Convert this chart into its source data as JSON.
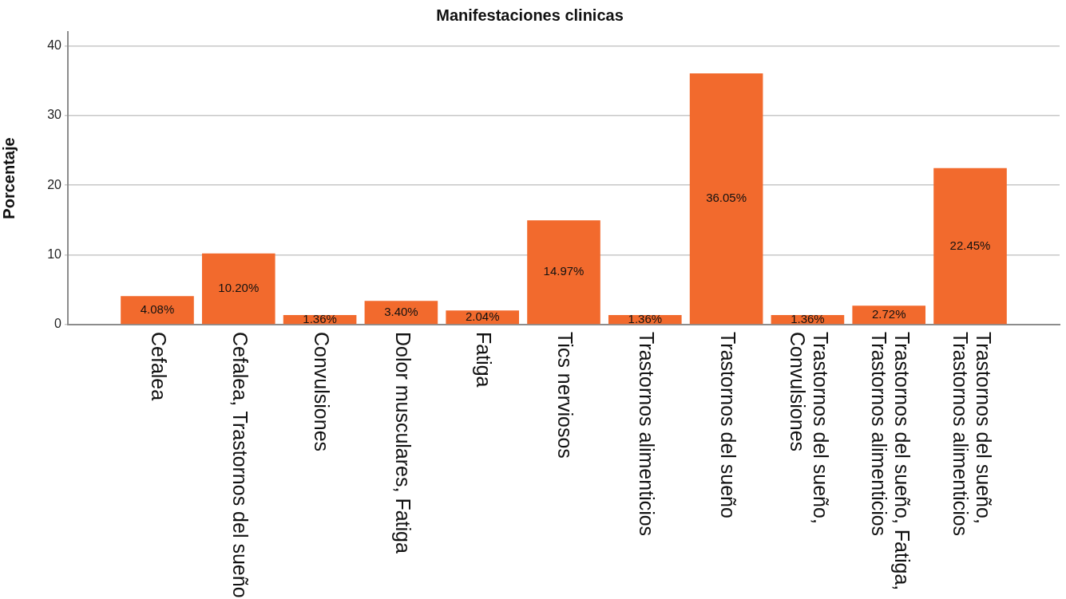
{
  "chart_data": {
    "type": "bar",
    "title": "Manifestaciones clinicas",
    "ylabel": "Porcentaje",
    "categories": [
      "Cefalea",
      "Cefalea, Trastornos del sueño",
      "Convulsiones",
      "Dolor musculares, Fatiga",
      "Fatiga",
      "Tics nerviosos",
      "Trastornos alimenticios",
      "Trastornos del sueño",
      "Trastornos del sueño, Convulsiones",
      "Trastornos del sueño, Fatiga, Trastornos alimenticios",
      "Trastornos del sueño, Trastornos alimenticios"
    ],
    "values": [
      4.08,
      10.2,
      1.36,
      3.4,
      2.04,
      14.97,
      1.36,
      36.05,
      1.36,
      2.72,
      22.45
    ],
    "value_labels": [
      "4.08%",
      "10.20%",
      "1.36%",
      "3.40%",
      "2.04%",
      "14.97%",
      "1.36%",
      "36.05%",
      "1.36%",
      "2.72%",
      "22.45%"
    ],
    "color": "#f26a2d",
    "ylim": [
      0,
      42
    ],
    "yticks": [
      0,
      10,
      20,
      30,
      40
    ],
    "grid": "y"
  }
}
